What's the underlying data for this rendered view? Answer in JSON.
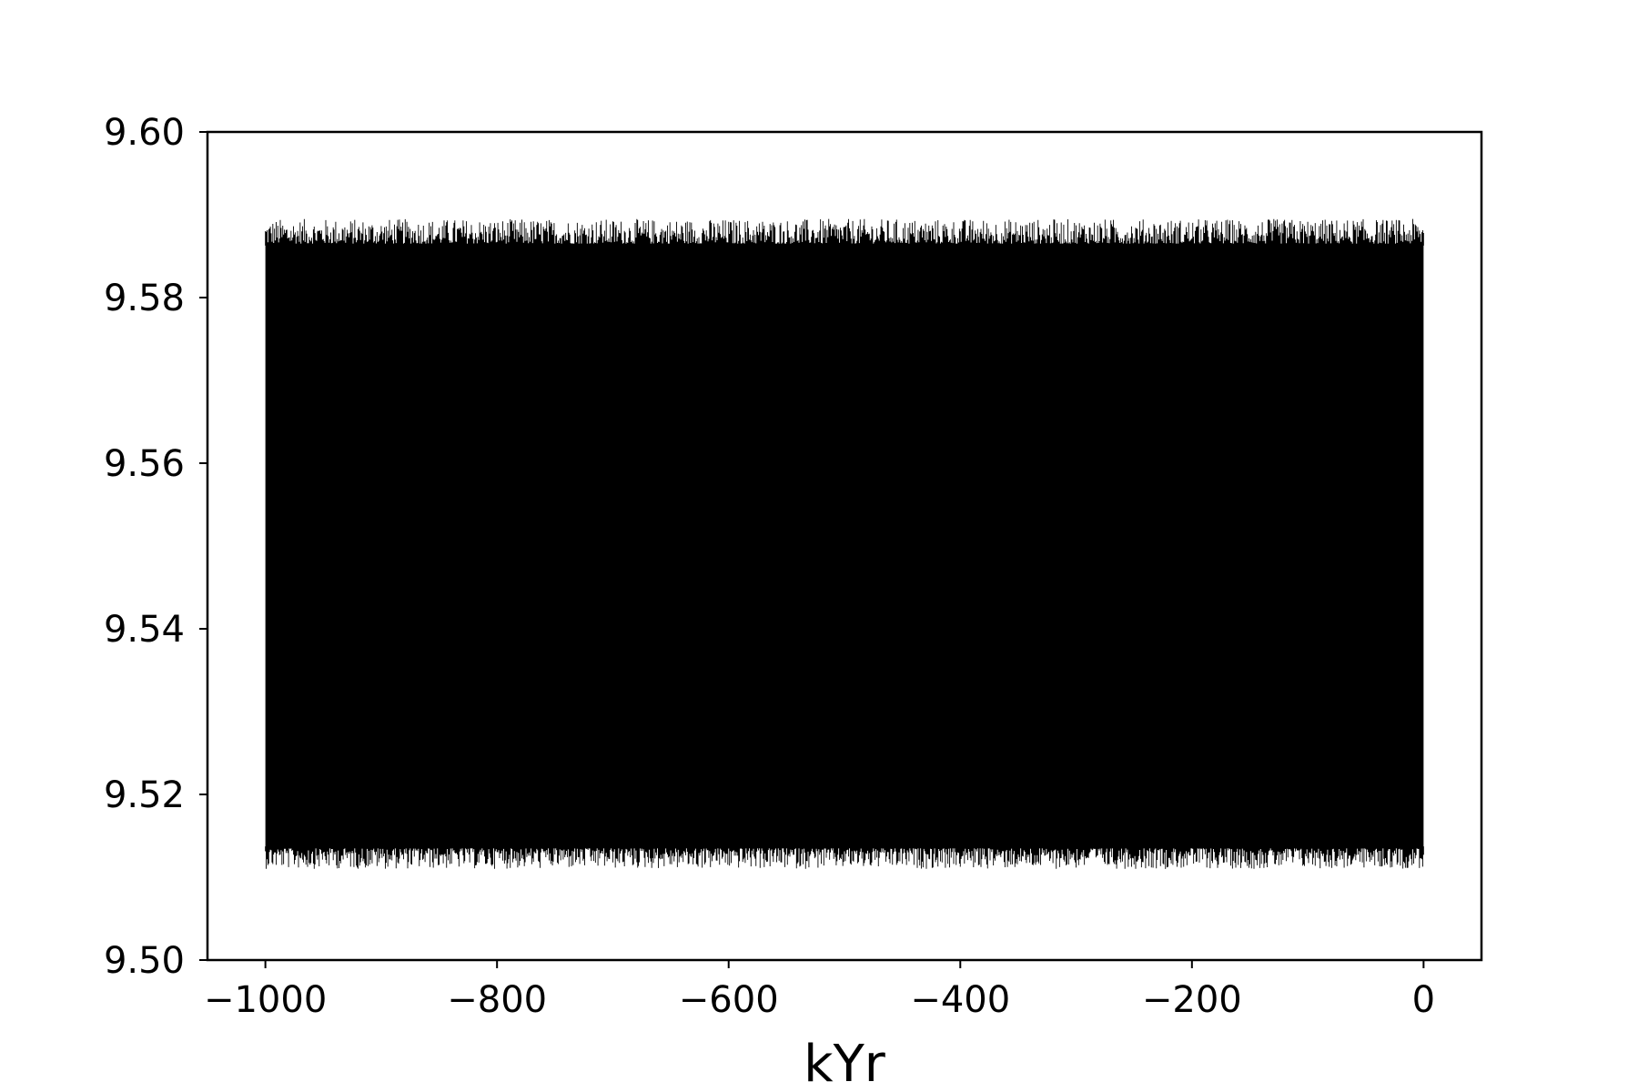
{
  "chart_data": {
    "type": "line",
    "title": "",
    "xlabel": "kYr",
    "ylabel": "",
    "xlim": [
      -1050,
      50
    ],
    "ylim": [
      9.5,
      9.6
    ],
    "xticks": [
      -1000,
      -800,
      -600,
      -400,
      -200,
      0
    ],
    "xtick_labels": [
      "−1000",
      "−800",
      "−600",
      "−400",
      "−200",
      "0"
    ],
    "yticks": [
      9.5,
      9.52,
      9.54,
      9.56,
      9.58,
      9.6
    ],
    "ytick_labels": [
      "9.50",
      "9.52",
      "9.54",
      "9.56",
      "9.58",
      "9.60"
    ],
    "grid": false,
    "legend": "none",
    "line_color": "#000000",
    "series": [
      {
        "x_range": [
          -1000,
          0
        ],
        "band_low": [
          9.5135,
          9.5165
        ],
        "band_high": [
          9.5815,
          9.5865
        ],
        "min": 9.511,
        "max": 9.5895
      }
    ]
  }
}
